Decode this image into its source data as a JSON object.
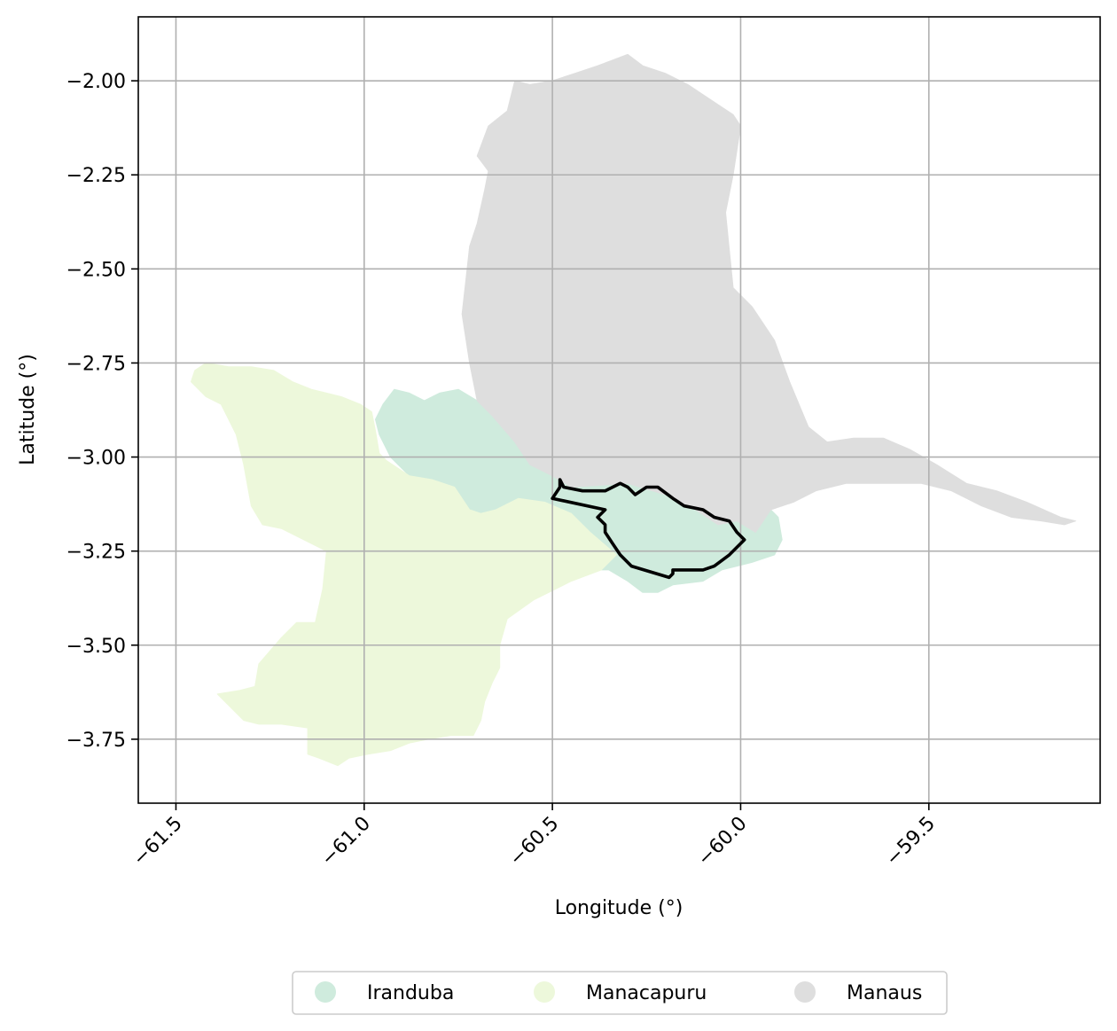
{
  "chart_data": {
    "type": "map",
    "xlabel": "Longitude (°)",
    "ylabel": "Latitude (°)",
    "xlim": [
      -61.6,
      -59.045
    ],
    "ylim": [
      -3.92,
      -1.83
    ],
    "grid": true,
    "legend_placement": "bottom-center",
    "x_ticks": [
      {
        "value": -61.5,
        "label": "−61.5"
      },
      {
        "value": -61.0,
        "label": "−61.0"
      },
      {
        "value": -60.5,
        "label": "−60.5"
      },
      {
        "value": -60.0,
        "label": "−60.0"
      },
      {
        "value": -59.5,
        "label": "−59.5"
      }
    ],
    "y_ticks": [
      {
        "value": -2.0,
        "label": "−2.00"
      },
      {
        "value": -2.25,
        "label": "−2.25"
      },
      {
        "value": -2.5,
        "label": "−2.50"
      },
      {
        "value": -2.75,
        "label": "−2.75"
      },
      {
        "value": -3.0,
        "label": "−3.00"
      },
      {
        "value": -3.25,
        "label": "−3.25"
      },
      {
        "value": -3.5,
        "label": "−3.50"
      },
      {
        "value": -3.75,
        "label": "−3.75"
      }
    ],
    "regions": [
      {
        "name": "Iranduba",
        "color": "#cfebdd",
        "outline": [
          [
            -60.95,
            -2.86
          ],
          [
            -60.92,
            -2.82
          ],
          [
            -60.88,
            -2.83
          ],
          [
            -60.84,
            -2.85
          ],
          [
            -60.8,
            -2.83
          ],
          [
            -60.75,
            -2.82
          ],
          [
            -60.7,
            -2.85
          ],
          [
            -60.66,
            -2.89
          ],
          [
            -60.6,
            -2.96
          ],
          [
            -60.56,
            -3.02
          ],
          [
            -60.5,
            -3.05
          ],
          [
            -60.45,
            -3.08
          ],
          [
            -60.3,
            -3.07
          ],
          [
            -60.2,
            -3.1
          ],
          [
            -60.12,
            -3.14
          ],
          [
            -60.06,
            -3.18
          ],
          [
            -60.01,
            -3.17
          ],
          [
            -59.96,
            -3.2
          ],
          [
            -59.92,
            -3.14
          ],
          [
            -59.9,
            -3.16
          ],
          [
            -59.89,
            -3.22
          ],
          [
            -59.91,
            -3.26
          ],
          [
            -59.94,
            -3.27
          ],
          [
            -59.97,
            -3.28
          ],
          [
            -60.05,
            -3.3
          ],
          [
            -60.1,
            -3.33
          ],
          [
            -60.18,
            -3.34
          ],
          [
            -60.22,
            -3.36
          ],
          [
            -60.26,
            -3.36
          ],
          [
            -60.3,
            -3.33
          ],
          [
            -60.35,
            -3.3
          ],
          [
            -60.37,
            -3.3
          ],
          [
            -60.33,
            -3.26
          ],
          [
            -60.4,
            -3.2
          ],
          [
            -60.45,
            -3.15
          ],
          [
            -60.52,
            -3.12
          ],
          [
            -60.59,
            -3.11
          ],
          [
            -60.65,
            -3.14
          ],
          [
            -60.69,
            -3.15
          ],
          [
            -60.72,
            -3.14
          ],
          [
            -60.76,
            -3.08
          ],
          [
            -60.82,
            -3.06
          ],
          [
            -60.88,
            -3.05
          ],
          [
            -60.93,
            -3.0
          ],
          [
            -60.94,
            -2.98
          ],
          [
            -60.96,
            -2.94
          ],
          [
            -60.97,
            -2.9
          ]
        ]
      },
      {
        "name": "Manacapuru",
        "color": "#edf8db",
        "outline": [
          [
            -61.45,
            -2.77
          ],
          [
            -61.42,
            -2.75
          ],
          [
            -61.36,
            -2.76
          ],
          [
            -61.3,
            -2.76
          ],
          [
            -61.24,
            -2.77
          ],
          [
            -61.19,
            -2.8
          ],
          [
            -61.14,
            -2.82
          ],
          [
            -61.1,
            -2.83
          ],
          [
            -61.06,
            -2.84
          ],
          [
            -61.01,
            -2.86
          ],
          [
            -60.98,
            -2.88
          ],
          [
            -60.97,
            -2.93
          ],
          [
            -60.96,
            -2.99
          ],
          [
            -60.94,
            -3.01
          ],
          [
            -60.88,
            -3.05
          ],
          [
            -60.82,
            -3.06
          ],
          [
            -60.76,
            -3.08
          ],
          [
            -60.72,
            -3.14
          ],
          [
            -60.69,
            -3.15
          ],
          [
            -60.65,
            -3.14
          ],
          [
            -60.59,
            -3.11
          ],
          [
            -60.52,
            -3.12
          ],
          [
            -60.45,
            -3.15
          ],
          [
            -60.4,
            -3.2
          ],
          [
            -60.33,
            -3.26
          ],
          [
            -60.37,
            -3.3
          ],
          [
            -60.45,
            -3.33
          ],
          [
            -60.55,
            -3.38
          ],
          [
            -60.62,
            -3.43
          ],
          [
            -60.64,
            -3.5
          ],
          [
            -60.64,
            -3.56
          ],
          [
            -60.66,
            -3.6
          ],
          [
            -60.68,
            -3.65
          ],
          [
            -60.69,
            -3.7
          ],
          [
            -60.71,
            -3.74
          ],
          [
            -60.77,
            -3.74
          ],
          [
            -60.83,
            -3.75
          ],
          [
            -60.88,
            -3.76
          ],
          [
            -60.93,
            -3.78
          ],
          [
            -60.99,
            -3.79
          ],
          [
            -61.04,
            -3.8
          ],
          [
            -61.07,
            -3.82
          ],
          [
            -61.12,
            -3.8
          ],
          [
            -61.15,
            -3.79
          ],
          [
            -61.15,
            -3.72
          ],
          [
            -61.22,
            -3.71
          ],
          [
            -61.28,
            -3.71
          ],
          [
            -61.32,
            -3.7
          ],
          [
            -61.36,
            -3.66
          ],
          [
            -61.39,
            -3.63
          ],
          [
            -61.33,
            -3.62
          ],
          [
            -61.29,
            -3.61
          ],
          [
            -61.28,
            -3.55
          ],
          [
            -61.22,
            -3.48
          ],
          [
            -61.18,
            -3.44
          ],
          [
            -61.13,
            -3.44
          ],
          [
            -61.11,
            -3.35
          ],
          [
            -61.1,
            -3.25
          ],
          [
            -61.14,
            -3.23
          ],
          [
            -61.22,
            -3.19
          ],
          [
            -61.27,
            -3.18
          ],
          [
            -61.3,
            -3.13
          ],
          [
            -61.32,
            -3.02
          ],
          [
            -61.34,
            -2.94
          ],
          [
            -61.38,
            -2.86
          ],
          [
            -61.42,
            -2.84
          ],
          [
            -61.46,
            -2.8
          ]
        ]
      },
      {
        "name": "Manaus",
        "color": "#dedede",
        "outline": [
          [
            -60.73,
            -2.53
          ],
          [
            -60.72,
            -2.44
          ],
          [
            -60.7,
            -2.38
          ],
          [
            -60.68,
            -2.29
          ],
          [
            -60.67,
            -2.24
          ],
          [
            -60.7,
            -2.2
          ],
          [
            -60.67,
            -2.12
          ],
          [
            -60.62,
            -2.08
          ],
          [
            -60.6,
            -2.0
          ],
          [
            -60.56,
            -2.01
          ],
          [
            -60.5,
            -2.0
          ],
          [
            -60.44,
            -1.98
          ],
          [
            -60.38,
            -1.96
          ],
          [
            -60.3,
            -1.93
          ],
          [
            -60.26,
            -1.96
          ],
          [
            -60.2,
            -1.98
          ],
          [
            -60.14,
            -2.01
          ],
          [
            -60.08,
            -2.05
          ],
          [
            -60.02,
            -2.09
          ],
          [
            -60.0,
            -2.12
          ],
          [
            -60.02,
            -2.25
          ],
          [
            -60.04,
            -2.35
          ],
          [
            -60.03,
            -2.45
          ],
          [
            -60.02,
            -2.55
          ],
          [
            -59.97,
            -2.6
          ],
          [
            -59.91,
            -2.69
          ],
          [
            -59.87,
            -2.8
          ],
          [
            -59.82,
            -2.92
          ],
          [
            -59.77,
            -2.96
          ],
          [
            -59.7,
            -2.95
          ],
          [
            -59.62,
            -2.95
          ],
          [
            -59.55,
            -2.98
          ],
          [
            -59.48,
            -3.02
          ],
          [
            -59.4,
            -3.07
          ],
          [
            -59.32,
            -3.09
          ],
          [
            -59.24,
            -3.12
          ],
          [
            -59.15,
            -3.16
          ],
          [
            -59.11,
            -3.17
          ],
          [
            -59.14,
            -3.18
          ],
          [
            -59.2,
            -3.17
          ],
          [
            -59.28,
            -3.16
          ],
          [
            -59.36,
            -3.13
          ],
          [
            -59.44,
            -3.09
          ],
          [
            -59.52,
            -3.07
          ],
          [
            -59.62,
            -3.07
          ],
          [
            -59.72,
            -3.07
          ],
          [
            -59.8,
            -3.09
          ],
          [
            -59.86,
            -3.12
          ],
          [
            -59.92,
            -3.14
          ],
          [
            -59.96,
            -3.2
          ],
          [
            -60.01,
            -3.17
          ],
          [
            -60.06,
            -3.18
          ],
          [
            -60.12,
            -3.14
          ],
          [
            -60.2,
            -3.1
          ],
          [
            -60.3,
            -3.07
          ],
          [
            -60.45,
            -3.08
          ],
          [
            -60.5,
            -3.05
          ],
          [
            -60.56,
            -3.02
          ],
          [
            -60.6,
            -2.96
          ],
          [
            -60.66,
            -2.89
          ],
          [
            -60.7,
            -2.85
          ],
          [
            -60.72,
            -2.75
          ],
          [
            -60.74,
            -2.62
          ]
        ]
      }
    ],
    "highlight_outline": [
      [
        -60.48,
        -3.06
      ],
      [
        -60.47,
        -3.08
      ],
      [
        -60.42,
        -3.09
      ],
      [
        -60.36,
        -3.09
      ],
      [
        -60.32,
        -3.07
      ],
      [
        -60.3,
        -3.08
      ],
      [
        -60.28,
        -3.1
      ],
      [
        -60.25,
        -3.08
      ],
      [
        -60.22,
        -3.08
      ],
      [
        -60.18,
        -3.11
      ],
      [
        -60.15,
        -3.13
      ],
      [
        -60.1,
        -3.14
      ],
      [
        -60.07,
        -3.16
      ],
      [
        -60.03,
        -3.17
      ],
      [
        -60.01,
        -3.2
      ],
      [
        -59.99,
        -3.22
      ],
      [
        -60.01,
        -3.24
      ],
      [
        -60.03,
        -3.26
      ],
      [
        -60.07,
        -3.29
      ],
      [
        -60.1,
        -3.3
      ],
      [
        -60.15,
        -3.3
      ],
      [
        -60.18,
        -3.3
      ],
      [
        -60.18,
        -3.31
      ],
      [
        -60.19,
        -3.32
      ],
      [
        -60.29,
        -3.29
      ],
      [
        -60.32,
        -3.26
      ],
      [
        -60.34,
        -3.23
      ],
      [
        -60.36,
        -3.2
      ],
      [
        -60.36,
        -3.18
      ],
      [
        -60.38,
        -3.16
      ],
      [
        -60.36,
        -3.14
      ],
      [
        -60.5,
        -3.11
      ],
      [
        -60.48,
        -3.08
      ]
    ]
  },
  "legend": {
    "items": [
      {
        "label": "Iranduba",
        "color": "#cfebdd"
      },
      {
        "label": "Manacapuru",
        "color": "#edf8db"
      },
      {
        "label": "Manaus",
        "color": "#dedede"
      }
    ]
  }
}
